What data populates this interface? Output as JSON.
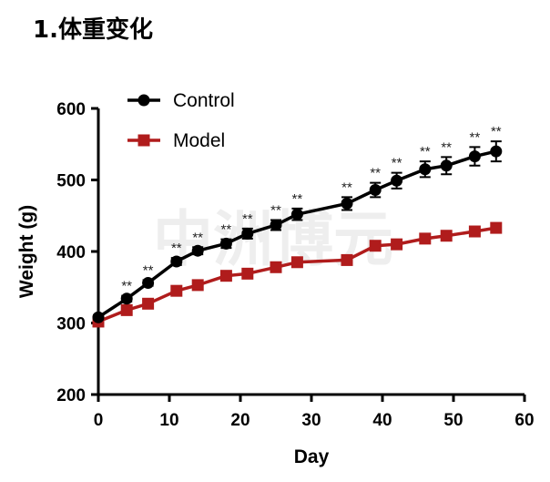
{
  "heading": "1.体重变化",
  "watermark": "中洲博元",
  "chart_data": {
    "type": "line",
    "xlabel": "Day",
    "ylabel": "Weight (g)",
    "xlim": [
      0,
      60
    ],
    "ylim": [
      200,
      600
    ],
    "xticks": [
      0,
      10,
      20,
      30,
      40,
      50,
      60
    ],
    "yticks": [
      200,
      300,
      400,
      500,
      600
    ],
    "grid": false,
    "legend_position": "top-left",
    "series": [
      {
        "name": "Control",
        "color": "#000000",
        "marker": "circle",
        "x": [
          0,
          4,
          7,
          11,
          14,
          18,
          21,
          25,
          28,
          35,
          39,
          42,
          46,
          49,
          53,
          56
        ],
        "y": [
          308,
          334,
          356,
          386,
          401,
          411,
          425,
          437,
          452,
          467,
          486,
          499,
          515,
          520,
          533,
          540
        ],
        "err": [
          3,
          4,
          4,
          5,
          5,
          6,
          7,
          7,
          8,
          9,
          10,
          11,
          11,
          12,
          13,
          14
        ],
        "significance": [
          "",
          "**",
          "**",
          "**",
          "**",
          "**",
          "**",
          "**",
          "**",
          "**",
          "**",
          "**",
          "**",
          "**",
          "**",
          "**"
        ]
      },
      {
        "name": "Model",
        "color": "#b01c1c",
        "marker": "square",
        "x": [
          0,
          4,
          7,
          11,
          14,
          18,
          21,
          25,
          28,
          35,
          39,
          42,
          46,
          49,
          53,
          56
        ],
        "y": [
          302,
          318,
          327,
          345,
          353,
          366,
          369,
          378,
          385,
          388,
          408,
          410,
          418,
          422,
          428,
          433
        ]
      }
    ]
  }
}
